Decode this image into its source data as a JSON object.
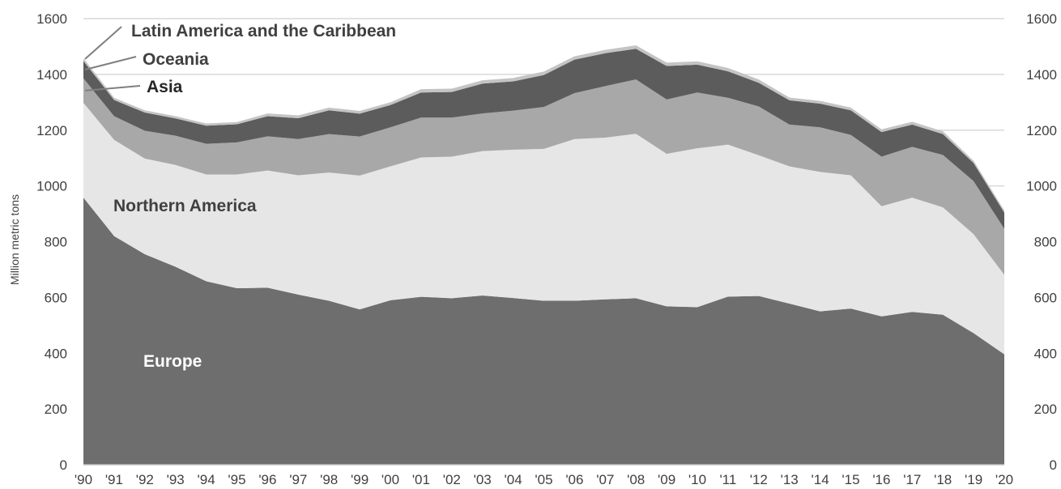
{
  "chart_data": {
    "type": "area",
    "stacked": true,
    "title": "",
    "xlabel": "",
    "ylabel": "Million metric tons",
    "ylim": [
      0,
      1600
    ],
    "yticks": [
      0,
      200,
      400,
      600,
      800,
      1000,
      1200,
      1400,
      1600
    ],
    "secondary_y_axis": true,
    "grid": "horizontal",
    "legend": "inline labels",
    "categories": [
      "'90",
      "'91",
      "'92",
      "'93",
      "'94",
      "'95",
      "'96",
      "'97",
      "'98",
      "'99",
      "'00",
      "'01",
      "'02",
      "'03",
      "'04",
      "'05",
      "'06",
      "'07",
      "'08",
      "'09",
      "'10",
      "'11",
      "'12",
      "'13",
      "'14",
      "'15",
      "'16",
      "'17",
      "'18",
      "'19",
      "'20"
    ],
    "series": [
      {
        "name": "Europe",
        "color": "#6e6e6e",
        "values": [
          958,
          820,
          755,
          710,
          658,
          633,
          635,
          610,
          588,
          557,
          590,
          602,
          597,
          607,
          598,
          588,
          588,
          593,
          597,
          568,
          565,
          603,
          605,
          578,
          550,
          560,
          532,
          548,
          538,
          472,
          396
        ]
      },
      {
        "name": "Northern America",
        "color": "#e6e6e6",
        "values": [
          340,
          345,
          343,
          365,
          383,
          408,
          420,
          428,
          460,
          480,
          480,
          500,
          508,
          518,
          532,
          545,
          580,
          580,
          590,
          547,
          570,
          545,
          505,
          492,
          500,
          478,
          395,
          410,
          385,
          355,
          285
        ]
      },
      {
        "name": "Asia",
        "color": "#a8a8a8",
        "values": [
          88,
          85,
          100,
          105,
          110,
          115,
          123,
          130,
          138,
          140,
          140,
          143,
          140,
          135,
          140,
          150,
          165,
          185,
          195,
          195,
          200,
          168,
          175,
          150,
          160,
          145,
          178,
          182,
          188,
          190,
          165
        ]
      },
      {
        "name": "Oceania",
        "color": "#5c5c5c",
        "values": [
          62,
          58,
          65,
          62,
          65,
          65,
          72,
          75,
          85,
          82,
          80,
          90,
          92,
          107,
          105,
          115,
          120,
          118,
          110,
          120,
          100,
          95,
          85,
          87,
          85,
          88,
          88,
          80,
          75,
          65,
          58
        ]
      },
      {
        "name": "Latin America and the Caribbean",
        "color": "#c4c4c4",
        "values": [
          10,
          8,
          8,
          8,
          8,
          8,
          10,
          10,
          10,
          10,
          10,
          12,
          12,
          12,
          12,
          12,
          12,
          12,
          12,
          12,
          12,
          12,
          12,
          10,
          10,
          10,
          10,
          10,
          10,
          8,
          8
        ]
      }
    ]
  }
}
